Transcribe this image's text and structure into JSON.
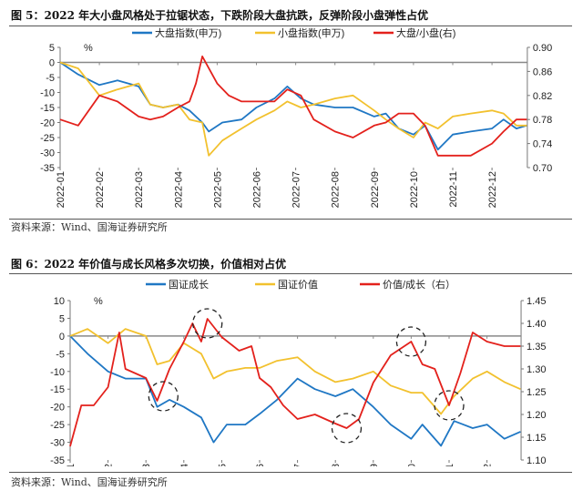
{
  "chart_data": [
    {
      "type": "line",
      "title": "图 5：2022 年大小盘风格处于拉锯状态，下跌阶段大盘抗跌，反弹阶段小盘弹性占优",
      "source": "资料来源：Wind、国海证券研究所",
      "ylabel_left": "%",
      "ylim_left": [
        -35,
        5
      ],
      "yticks_left": [
        "5",
        "0",
        "-5",
        "-10",
        "-15",
        "-20",
        "-25",
        "-30",
        "-35"
      ],
      "ylim_right": [
        0.7,
        0.9
      ],
      "yticks_right": [
        "0.90",
        "0.86",
        "0.82",
        "0.78",
        "0.74",
        "0.70"
      ],
      "xticks": [
        "2022-01",
        "2022-02",
        "2022-03",
        "2022-04",
        "2022-05",
        "2022-06",
        "2022-07",
        "2022-08",
        "2022-09",
        "2022-10",
        "2022-11",
        "2022-12"
      ],
      "legend_position": "top",
      "grid": false,
      "series": [
        {
          "name": "大盘指数(申万)",
          "axis": "left",
          "color": "#1f77c4",
          "x": [
            "2022-01-01",
            "2022-01-15",
            "2022-02-01",
            "2022-02-15",
            "2022-03-01",
            "2022-03-10",
            "2022-03-20",
            "2022-04-01",
            "2022-04-10",
            "2022-04-20",
            "2022-04-25",
            "2022-05-05",
            "2022-05-20",
            "2022-06-01",
            "2022-06-15",
            "2022-06-25",
            "2022-07-05",
            "2022-07-15",
            "2022-08-01",
            "2022-08-15",
            "2022-09-01",
            "2022-09-10",
            "2022-09-20",
            "2022-10-01",
            "2022-10-10",
            "2022-10-20",
            "2022-11-01",
            "2022-11-15",
            "2022-12-01",
            "2022-12-10",
            "2022-12-20",
            "2022-12-28"
          ],
          "y": [
            0,
            -4,
            -7.5,
            -6,
            -8,
            -14,
            -15,
            -14,
            -16,
            -20,
            -23,
            -20,
            -19,
            -15,
            -12,
            -8,
            -12,
            -14,
            -15,
            -15,
            -18,
            -17,
            -22,
            -24,
            -21,
            -29,
            -24,
            -23,
            -22,
            -19,
            -22,
            -21
          ]
        },
        {
          "name": "小盘指数(申万)",
          "axis": "left",
          "color": "#f2c12e",
          "x": [
            "2022-01-01",
            "2022-01-15",
            "2022-02-01",
            "2022-02-15",
            "2022-03-01",
            "2022-03-10",
            "2022-03-20",
            "2022-04-01",
            "2022-04-10",
            "2022-04-20",
            "2022-04-25",
            "2022-05-05",
            "2022-05-20",
            "2022-06-01",
            "2022-06-15",
            "2022-06-25",
            "2022-07-05",
            "2022-07-15",
            "2022-08-01",
            "2022-08-15",
            "2022-09-01",
            "2022-09-10",
            "2022-09-20",
            "2022-10-01",
            "2022-10-10",
            "2022-10-20",
            "2022-11-01",
            "2022-11-15",
            "2022-12-01",
            "2022-12-10",
            "2022-12-20",
            "2022-12-28"
          ],
          "y": [
            0,
            -2,
            -11,
            -9,
            -7,
            -14,
            -15,
            -14,
            -19,
            -20,
            -31,
            -26,
            -22,
            -19,
            -16,
            -13,
            -15,
            -14,
            -12,
            -11,
            -16,
            -19,
            -22,
            -25,
            -20,
            -22,
            -18,
            -17,
            -16,
            -17,
            -21,
            -21
          ]
        },
        {
          "name": "大盘/小盘(右)",
          "axis": "right",
          "color": "#e3211c",
          "x": [
            "2022-01-01",
            "2022-01-15",
            "2022-02-01",
            "2022-02-15",
            "2022-03-01",
            "2022-03-10",
            "2022-03-20",
            "2022-04-01",
            "2022-04-10",
            "2022-04-15",
            "2022-04-20",
            "2022-05-01",
            "2022-05-10",
            "2022-05-20",
            "2022-06-01",
            "2022-06-15",
            "2022-06-25",
            "2022-07-05",
            "2022-07-15",
            "2022-08-01",
            "2022-08-15",
            "2022-09-01",
            "2022-09-10",
            "2022-09-20",
            "2022-10-01",
            "2022-10-10",
            "2022-10-20",
            "2022-11-01",
            "2022-11-15",
            "2022-12-01",
            "2022-12-10",
            "2022-12-20",
            "2022-12-28"
          ],
          "y": [
            0.78,
            0.77,
            0.82,
            0.81,
            0.785,
            0.78,
            0.785,
            0.8,
            0.81,
            0.84,
            0.885,
            0.84,
            0.82,
            0.81,
            0.81,
            0.81,
            0.83,
            0.82,
            0.78,
            0.76,
            0.75,
            0.77,
            0.775,
            0.79,
            0.79,
            0.77,
            0.72,
            0.72,
            0.72,
            0.74,
            0.76,
            0.78,
            0.78
          ]
        }
      ]
    },
    {
      "type": "line",
      "title": "图 6：2022 年价值与成长风格多次切换，价值相对占优",
      "source": "资料来源：Wind、国海证券研究所",
      "ylabel_left": "%",
      "ylim_left": [
        -35,
        10
      ],
      "yticks_left": [
        "10",
        "5",
        "0",
        "-5",
        "-10",
        "-15",
        "-20",
        "-25",
        "-30",
        "-35"
      ],
      "ylim_right": [
        1.1,
        1.45
      ],
      "yticks_right": [
        "1.45",
        "1.40",
        "1.35",
        "1.30",
        "1.25",
        "1.20",
        "1.15",
        "1.10"
      ],
      "xticks": [
        "2022-01",
        "2022-02",
        "2022-03",
        "2022-04",
        "2022-05",
        "2022-06",
        "2022-07",
        "2022-08",
        "2022-09",
        "2022-10",
        "2022-11",
        "2022-12"
      ],
      "legend_position": "top",
      "grid": false,
      "series": [
        {
          "name": "国证成长",
          "axis": "left",
          "color": "#1f77c4",
          "x": [
            "2022-01-01",
            "2022-01-15",
            "2022-02-01",
            "2022-02-15",
            "2022-03-01",
            "2022-03-10",
            "2022-03-20",
            "2022-04-01",
            "2022-04-15",
            "2022-04-25",
            "2022-05-05",
            "2022-05-20",
            "2022-06-01",
            "2022-06-15",
            "2022-07-01",
            "2022-07-15",
            "2022-08-01",
            "2022-08-15",
            "2022-09-01",
            "2022-09-15",
            "2022-10-01",
            "2022-10-10",
            "2022-10-25",
            "2022-11-05",
            "2022-11-20",
            "2022-12-01",
            "2022-12-15",
            "2022-12-28"
          ],
          "y": [
            0,
            -5,
            -10,
            -12,
            -12,
            -20,
            -18,
            -20,
            -23,
            -30,
            -25,
            -25,
            -22,
            -18,
            -12,
            -15,
            -17,
            -15,
            -20,
            -25,
            -29,
            -25,
            -31,
            -24,
            -26,
            -25,
            -29,
            -27
          ]
        },
        {
          "name": "国证价值",
          "axis": "left",
          "color": "#f2c12e",
          "x": [
            "2022-01-01",
            "2022-01-15",
            "2022-02-01",
            "2022-02-15",
            "2022-03-01",
            "2022-03-10",
            "2022-03-20",
            "2022-04-01",
            "2022-04-15",
            "2022-04-25",
            "2022-05-05",
            "2022-05-20",
            "2022-06-01",
            "2022-06-15",
            "2022-07-01",
            "2022-07-15",
            "2022-08-01",
            "2022-08-15",
            "2022-09-01",
            "2022-09-15",
            "2022-10-01",
            "2022-10-10",
            "2022-10-25",
            "2022-11-05",
            "2022-11-20",
            "2022-12-01",
            "2022-12-15",
            "2022-12-28"
          ],
          "y": [
            0,
            2,
            -2,
            2,
            0,
            -8,
            -7,
            -2,
            -5,
            -12,
            -10,
            -9,
            -9,
            -7,
            -6,
            -10,
            -13,
            -12,
            -10,
            -14,
            -16,
            -16,
            -22,
            -17,
            -12,
            -10,
            -13,
            -15
          ]
        },
        {
          "name": "价值/成长（右）",
          "axis": "right",
          "color": "#e3211c",
          "x": [
            "2022-01-01",
            "2022-01-10",
            "2022-01-20",
            "2022-02-01",
            "2022-02-10",
            "2022-02-15",
            "2022-03-01",
            "2022-03-10",
            "2022-03-20",
            "2022-04-01",
            "2022-04-08",
            "2022-04-15",
            "2022-04-20",
            "2022-05-01",
            "2022-05-15",
            "2022-05-25",
            "2022-06-01",
            "2022-06-10",
            "2022-06-20",
            "2022-07-01",
            "2022-07-15",
            "2022-08-01",
            "2022-08-10",
            "2022-08-20",
            "2022-09-01",
            "2022-09-15",
            "2022-10-01",
            "2022-10-10",
            "2022-10-20",
            "2022-11-01",
            "2022-11-10",
            "2022-11-20",
            "2022-12-01",
            "2022-12-15",
            "2022-12-28"
          ],
          "y": [
            1.13,
            1.22,
            1.22,
            1.26,
            1.38,
            1.3,
            1.28,
            1.23,
            1.3,
            1.36,
            1.4,
            1.36,
            1.41,
            1.37,
            1.34,
            1.35,
            1.28,
            1.26,
            1.22,
            1.19,
            1.2,
            1.18,
            1.17,
            1.19,
            1.27,
            1.33,
            1.36,
            1.31,
            1.3,
            1.22,
            1.29,
            1.38,
            1.36,
            1.35,
            1.35
          ]
        }
      ],
      "annotations": [
        {
          "shape": "dashed-circle",
          "axis": "left",
          "x": "2022-03-15",
          "y": -17
        },
        {
          "shape": "dashed-circle",
          "axis": "right",
          "x": "2022-04-20",
          "y": 1.4
        },
        {
          "shape": "dashed-circle",
          "axis": "right",
          "x": "2022-08-10",
          "y": 1.17
        },
        {
          "shape": "dashed-circle",
          "axis": "right",
          "x": "2022-10-01",
          "y": 1.36
        },
        {
          "shape": "dashed-circle",
          "axis": "right",
          "x": "2022-11-01",
          "y": 1.22
        }
      ]
    }
  ]
}
